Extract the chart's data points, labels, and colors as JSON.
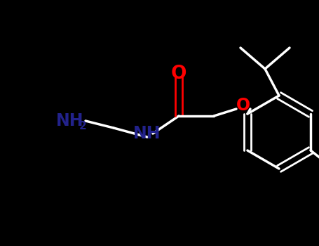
{
  "background_color": "#000000",
  "bond_color": "#ffffff",
  "heteroatom_O_color": "#ff0000",
  "heteroatom_N_color": "#22228b",
  "figsize": [
    4.55,
    3.5
  ],
  "dpi": 100,
  "xlim": [
    0,
    455
  ],
  "ylim": [
    0,
    350
  ]
}
